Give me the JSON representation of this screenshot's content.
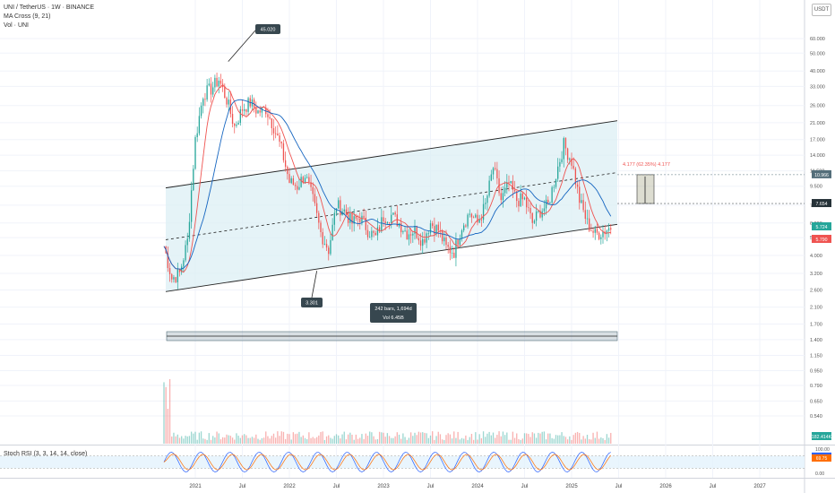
{
  "legend": {
    "title": "UNI / TetherUS · 1W · BINANCE",
    "ma": "MA Cross (9, 21)",
    "vol": "Vol · UNI"
  },
  "currency": "USDT",
  "price_scale": {
    "ticks": [
      "60.000",
      "50.000",
      "40.000",
      "33.000",
      "26.000",
      "21.000",
      "17.000",
      "14.000",
      "11.500",
      "9.500",
      "7.500",
      "6.000",
      "5.000",
      "4.000",
      "3.200",
      "2.600",
      "2.100",
      "1.700",
      "1.400",
      "1.150",
      "0.950",
      "0.790",
      "0.650",
      "0.540"
    ],
    "tags": [
      {
        "name": "level-10966",
        "text": "10.966",
        "bg": "#546e7a",
        "fg": "#ffffff"
      },
      {
        "name": "level-7654",
        "text": "7.654",
        "bg": "#263238",
        "fg": "#ffffff"
      },
      {
        "name": "last-price",
        "text": "5.724",
        "bg": "#26a69a",
        "fg": "#ffffff"
      },
      {
        "name": "ma-level",
        "text": "5.790",
        "bg": "#ef5350",
        "fg": "#ffffff"
      },
      {
        "name": "volume-level",
        "text": "182.414K",
        "bg": "#26a69a",
        "fg": "#ffffff"
      }
    ]
  },
  "time_axis": [
    "2021",
    "Jul",
    "2022",
    "Jul",
    "2023",
    "Jul",
    "2024",
    "Jul",
    "2025",
    "Jul",
    "2026",
    "Jul",
    "2027"
  ],
  "annotations": {
    "high_label": "45.020",
    "low_label": "3.301",
    "range_label_1": "242 bars, 1,694d",
    "range_label_2": "Vol 6.45B",
    "measure_label": "4.177 (62.35%) 4.177"
  },
  "rsi": {
    "title": "Stoch RSI (3, 3, 14, 14, close)",
    "ticks": [
      "100.00",
      "0.00"
    ],
    "tags": [
      {
        "name": "rsi-k",
        "text": "78.90",
        "bg": "#2962ff",
        "fg": "#ffffff"
      },
      {
        "name": "rsi-d",
        "text": "69.75",
        "bg": "#ff6d00",
        "fg": "#ffffff"
      }
    ]
  },
  "colors": {
    "up": "#26a69a",
    "down": "#ef5350",
    "ma_fast": "#ef5350",
    "ma_slow": "#1565c0",
    "channel_fill": "#dceff4"
  },
  "chart_data": {
    "type": "candlestick",
    "title": "UNI / TetherUS · 1W · BINANCE",
    "scale": "log",
    "ylim": [
      0.5,
      60
    ],
    "x": [
      "2020-09",
      "2020-10",
      "2020-11",
      "2020-12",
      "2021-01",
      "2021-02",
      "2021-03",
      "2021-04",
      "2021-05",
      "2021-06",
      "2021-07",
      "2021-08",
      "2021-09",
      "2021-10",
      "2021-11",
      "2021-12",
      "2022-01",
      "2022-02",
      "2022-03",
      "2022-04",
      "2022-05",
      "2022-06",
      "2022-07",
      "2022-08",
      "2022-09",
      "2022-10",
      "2022-11",
      "2022-12",
      "2023-01",
      "2023-02",
      "2023-03",
      "2023-04",
      "2023-05",
      "2023-06",
      "2023-07",
      "2023-08",
      "2023-09",
      "2023-10",
      "2023-11",
      "2023-12",
      "2024-01",
      "2024-02",
      "2024-03",
      "2024-04",
      "2024-05",
      "2024-06",
      "2024-07",
      "2024-08",
      "2024-09",
      "2024-10",
      "2024-11",
      "2024-12",
      "2025-01",
      "2025-02",
      "2025-03",
      "2025-04",
      "2025-05",
      "2025-06"
    ],
    "close": [
      4.5,
      3.0,
      3.2,
      4.8,
      17.0,
      30.0,
      32.0,
      36.0,
      28.0,
      20.0,
      25.0,
      27.0,
      24.0,
      25.0,
      20.0,
      15.0,
      10.0,
      9.5,
      11.0,
      8.0,
      5.3,
      4.3,
      7.5,
      7.0,
      6.0,
      6.5,
      5.5,
      5.0,
      6.5,
      6.6,
      6.0,
      5.3,
      5.5,
      4.8,
      6.0,
      5.5,
      4.4,
      4.2,
      5.8,
      6.8,
      6.0,
      7.5,
      12.0,
      8.0,
      9.8,
      8.0,
      8.0,
      6.0,
      7.0,
      7.5,
      11.0,
      16.0,
      13.0,
      8.0,
      6.0,
      5.2,
      5.4,
      5.7
    ],
    "ma_windows": [
      9,
      21
    ],
    "channel": {
      "upper_start": 9.3,
      "upper_end": 21.5,
      "lower_start": 2.55,
      "lower_end": 5.9
    },
    "annotations": {
      "high": 45.02,
      "low": 3.301,
      "bars": 242,
      "days": 1694,
      "volume": "6.45B",
      "measure_change": 4.177,
      "measure_pct": 62.35
    },
    "stoch_rsi": {
      "k": 78.9,
      "d": 69.75,
      "range": [
        0,
        100
      ]
    }
  }
}
